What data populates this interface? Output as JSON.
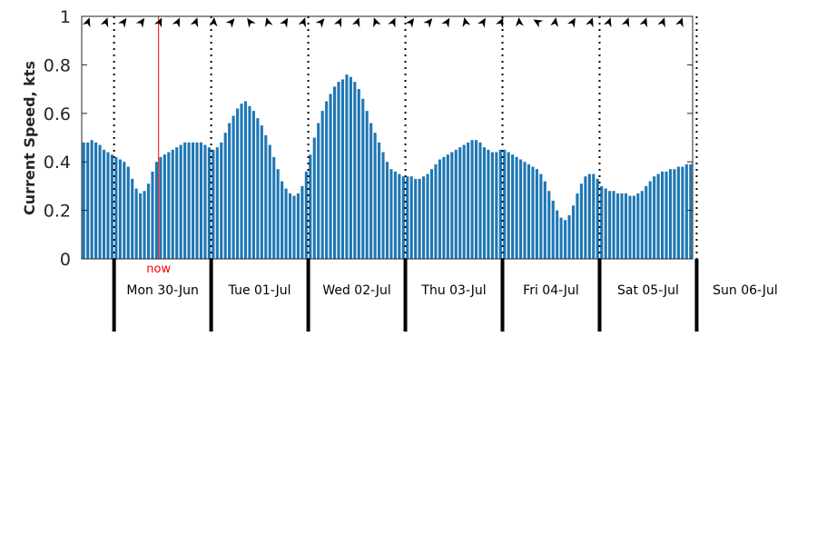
{
  "chart_data": {
    "type": "bar",
    "ylabel": "Current Speed, kts",
    "ylim": [
      0,
      1
    ],
    "yticks": [
      "0",
      "0.2",
      "0.4",
      "0.6",
      "0.8",
      "1"
    ],
    "bar_color": "#1f77b4",
    "now_color": "#ff0000",
    "now_label": "now",
    "now_hour": 19,
    "day_dividers_hours": [
      8,
      32,
      56,
      80,
      104,
      128,
      152
    ],
    "days": [
      "Mon 30-Jun",
      "Tue 01-Jul",
      "Wed 02-Jul",
      "Thu 03-Jul",
      "Fri 04-Jul",
      "Sat 05-Jul",
      "Sun 06-Jul"
    ],
    "grid": false,
    "values": [
      0.48,
      0.48,
      0.49,
      0.48,
      0.47,
      0.45,
      0.44,
      0.43,
      0.42,
      0.41,
      0.4,
      0.38,
      0.33,
      0.29,
      0.27,
      0.28,
      0.31,
      0.36,
      0.4,
      0.42,
      0.43,
      0.44,
      0.45,
      0.46,
      0.47,
      0.48,
      0.48,
      0.48,
      0.48,
      0.48,
      0.47,
      0.46,
      0.45,
      0.46,
      0.48,
      0.52,
      0.56,
      0.59,
      0.62,
      0.64,
      0.65,
      0.63,
      0.61,
      0.58,
      0.55,
      0.51,
      0.47,
      0.42,
      0.37,
      0.32,
      0.29,
      0.27,
      0.26,
      0.27,
      0.3,
      0.36,
      0.43,
      0.5,
      0.56,
      0.61,
      0.65,
      0.68,
      0.71,
      0.73,
      0.74,
      0.76,
      0.75,
      0.73,
      0.7,
      0.66,
      0.61,
      0.56,
      0.52,
      0.48,
      0.44,
      0.4,
      0.37,
      0.36,
      0.35,
      0.34,
      0.34,
      0.34,
      0.33,
      0.33,
      0.34,
      0.35,
      0.37,
      0.39,
      0.41,
      0.42,
      0.43,
      0.44,
      0.45,
      0.46,
      0.47,
      0.48,
      0.49,
      0.49,
      0.48,
      0.46,
      0.45,
      0.44,
      0.44,
      0.45,
      0.45,
      0.44,
      0.43,
      0.42,
      0.41,
      0.4,
      0.39,
      0.38,
      0.37,
      0.35,
      0.32,
      0.28,
      0.24,
      0.2,
      0.17,
      0.16,
      0.18,
      0.22,
      0.27,
      0.31,
      0.34,
      0.35,
      0.35,
      0.33,
      0.3,
      0.29,
      0.28,
      0.28,
      0.27,
      0.27,
      0.27,
      0.26,
      0.26,
      0.27,
      0.28,
      0.3,
      0.32,
      0.34,
      0.35,
      0.36,
      0.36,
      0.37,
      0.37,
      0.38,
      0.38,
      0.39,
      0.39
    ],
    "directions_deg": [
      20,
      20,
      35,
      35,
      25,
      25,
      20,
      5,
      40,
      325,
      345,
      30,
      20,
      40,
      25,
      20,
      340,
      25,
      35,
      40,
      30,
      345,
      30,
      25,
      355,
      300,
      10,
      30,
      20,
      20,
      20,
      20,
      20,
      20
    ]
  }
}
